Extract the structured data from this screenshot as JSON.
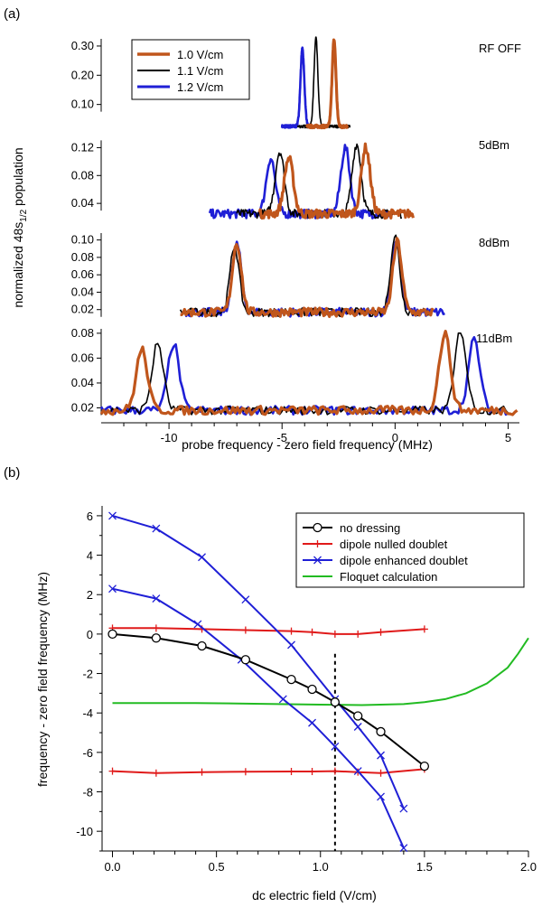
{
  "chart_data": [
    {
      "panel_label": "(a)",
      "type": "line",
      "xlabel": "probe frequency - zero field frequency (MHz)",
      "ylabel": "normalized 48s",
      "ylabel_sub": "1/2",
      "ylabel_suffix": " population",
      "x_range": [
        -13,
        5.5
      ],
      "x_ticks": [
        -10,
        -5,
        0,
        5
      ],
      "x_tick_labels": [
        "-10",
        "-5",
        "0",
        "5"
      ],
      "legend": {
        "location": "top-left",
        "entries": [
          {
            "label": "1.0 V/cm",
            "color": "#c0561c"
          },
          {
            "label": "1.1 V/cm",
            "color": "#000000"
          },
          {
            "label": "1.2 V/cm",
            "color": "#1f1fd6"
          }
        ]
      },
      "subplots": [
        {
          "label": "RF OFF",
          "ylim": [
            0,
            0.34
          ],
          "yticks": [
            0.1,
            0.2,
            0.3
          ],
          "ytick_labels": [
            "0.10",
            "0.20",
            "0.30"
          ],
          "peaks": {
            "1.0 V/cm": [
              {
                "x": -2.7,
                "y": 0.32
              }
            ],
            "1.1 V/cm": [
              {
                "x": -3.5,
                "y": 0.33
              }
            ],
            "1.2 V/cm": [
              {
                "x": -4.1,
                "y": 0.29
              }
            ]
          },
          "x_span": {
            "1.0 V/cm": [
              -3.9,
              -2.1
            ],
            "1.1 V/cm": [
              -4.3,
              -2.0
            ],
            "1.2 V/cm": [
              -5.0,
              -3.7
            ]
          },
          "baseline": 0.025
        },
        {
          "label": "5dBm",
          "ylim": [
            0,
            0.14
          ],
          "yticks": [
            0.04,
            0.08,
            0.12
          ],
          "ytick_labels": [
            "0.04",
            "0.08",
            "0.12"
          ],
          "peaks": {
            "1.0 V/cm": [
              {
                "x": -4.7,
                "y": 0.105
              },
              {
                "x": -1.3,
                "y": 0.12
              }
            ],
            "1.1 V/cm": [
              {
                "x": -5.1,
                "y": 0.115
              },
              {
                "x": -1.7,
                "y": 0.125
              }
            ],
            "1.2 V/cm": [
              {
                "x": -5.5,
                "y": 0.105
              },
              {
                "x": -2.2,
                "y": 0.12
              }
            ]
          },
          "x_span": {
            "1.0 V/cm": [
              -6.0,
              0.8
            ],
            "1.1 V/cm": [
              -7.0,
              0.3
            ],
            "1.2 V/cm": [
              -8.2,
              -0.1
            ]
          },
          "baseline": 0.025
        },
        {
          "label": "8dBm",
          "ylim": [
            0,
            0.11
          ],
          "yticks": [
            0.02,
            0.04,
            0.06,
            0.08,
            0.1
          ],
          "ytick_labels": [
            "0.02",
            "0.04",
            "0.06",
            "0.08",
            "0.10"
          ],
          "peaks": {
            "1.0 V/cm": [
              {
                "x": -7.0,
                "y": 0.097
              },
              {
                "x": 0.1,
                "y": 0.098
              }
            ],
            "1.1 V/cm": [
              {
                "x": -7.1,
                "y": 0.093
              },
              {
                "x": 0.0,
                "y": 0.105
              }
            ],
            "1.2 V/cm": [
              {
                "x": -7.0,
                "y": 0.095
              },
              {
                "x": 0.05,
                "y": 0.1
              }
            ]
          },
          "x_span": {
            "1.0 V/cm": [
              -9.5,
              1.7
            ],
            "1.1 V/cm": [
              -9.5,
              1.5
            ],
            "1.2 V/cm": [
              -9.3,
              2.2
            ]
          },
          "baseline": 0.017
        },
        {
          "label": "11dBm",
          "ylim": [
            0.008,
            0.085
          ],
          "yticks": [
            0.02,
            0.04,
            0.06,
            0.08
          ],
          "ytick_labels": [
            "0.02",
            "0.04",
            "0.06",
            "0.08"
          ],
          "peaks": {
            "1.0 V/cm": [
              {
                "x": -11.2,
                "y": 0.067
              },
              {
                "x": 2.2,
                "y": 0.08
              }
            ],
            "1.1 V/cm": [
              {
                "x": -10.5,
                "y": 0.072
              },
              {
                "x": 2.9,
                "y": 0.083
              }
            ],
            "1.2 V/cm": [
              {
                "x": -9.8,
                "y": 0.072
              },
              {
                "x": 3.5,
                "y": 0.075
              }
            ]
          },
          "x_span": {
            "1.0 V/cm": [
              -13.0,
              5.4
            ],
            "1.1 V/cm": [
              -13.0,
              5.0
            ],
            "1.2 V/cm": [
              -13.0,
              5.0
            ]
          },
          "baseline": 0.018
        }
      ]
    },
    {
      "panel_label": "(b)",
      "type": "line",
      "xlabel": "dc electric field (V/cm)",
      "ylabel": "frequency - zero field frequency (MHz)",
      "xlim": [
        -0.05,
        2.0
      ],
      "ylim": [
        -11,
        6.5
      ],
      "x_ticks": [
        0.0,
        0.5,
        1.0,
        1.5,
        2.0
      ],
      "x_tick_labels": [
        "0.0",
        "0.5",
        "1.0",
        "1.5",
        "2.0"
      ],
      "y_ticks": [
        -10,
        -8,
        -6,
        -4,
        -2,
        0,
        2,
        4,
        6
      ],
      "y_tick_labels": [
        "-10",
        "-8",
        "-6",
        "-4",
        "-2",
        "0",
        "2",
        "4",
        "6"
      ],
      "vline": {
        "x": 1.07,
        "y_range": [
          -11,
          -1
        ],
        "style": "dashed"
      },
      "legend_location": "top-right",
      "series": [
        {
          "name": "no dressing",
          "color": "#000000",
          "marker": "circle",
          "x": [
            0.0,
            0.21,
            0.43,
            0.64,
            0.86,
            0.96,
            1.07,
            1.18,
            1.29,
            1.5
          ],
          "y": [
            0.0,
            -0.2,
            -0.6,
            -1.3,
            -2.3,
            -2.8,
            -3.45,
            -4.15,
            -4.95,
            -6.7
          ]
        },
        {
          "name": "dipole nulled doublet",
          "color": "#e01a1a",
          "marker": "plus",
          "x": [
            0.0,
            0.21,
            0.43,
            0.64,
            0.86,
            0.96,
            1.07,
            1.18,
            1.29,
            1.5
          ],
          "y": [
            0.3,
            0.3,
            0.25,
            0.2,
            0.15,
            0.1,
            0.0,
            0.0,
            0.1,
            0.25
          ]
        },
        {
          "name": "",
          "legend": false,
          "color": "#e01a1a",
          "marker": "plus",
          "x": [
            0.0,
            0.21,
            0.43,
            0.64,
            0.86,
            0.96,
            1.07,
            1.18,
            1.29,
            1.5
          ],
          "y": [
            -6.95,
            -7.05,
            -7.0,
            -6.98,
            -6.97,
            -6.97,
            -6.95,
            -7.0,
            -7.05,
            -6.85
          ]
        },
        {
          "name": "dipole enhanced doublet",
          "color": "#1f1fd6",
          "marker": "x",
          "x": [
            0.0,
            0.21,
            0.43,
            0.64,
            0.86,
            1.07,
            1.18,
            1.29,
            1.4
          ],
          "y": [
            6.0,
            5.35,
            3.9,
            1.75,
            -0.55,
            -3.3,
            -4.7,
            -6.15,
            -8.85
          ]
        },
        {
          "name": "",
          "legend": false,
          "color": "#1f1fd6",
          "marker": "x",
          "x": [
            0.0,
            0.21,
            0.41,
            0.62,
            0.82,
            0.96,
            1.07,
            1.18,
            1.29,
            1.4
          ],
          "y": [
            2.3,
            1.8,
            0.5,
            -1.3,
            -3.3,
            -4.5,
            -5.7,
            -6.95,
            -8.25,
            -10.85
          ]
        },
        {
          "name": "Floquet calculation",
          "color": "#22bb22",
          "marker": "none",
          "x": [
            0.0,
            0.2,
            0.4,
            0.6,
            0.8,
            1.0,
            1.2,
            1.4,
            1.5,
            1.6,
            1.7,
            1.8,
            1.9,
            1.95,
            2.0
          ],
          "y": [
            -3.5,
            -3.5,
            -3.5,
            -3.52,
            -3.55,
            -3.58,
            -3.6,
            -3.55,
            -3.45,
            -3.3,
            -3.0,
            -2.5,
            -1.7,
            -1.0,
            -0.2
          ]
        }
      ]
    }
  ]
}
